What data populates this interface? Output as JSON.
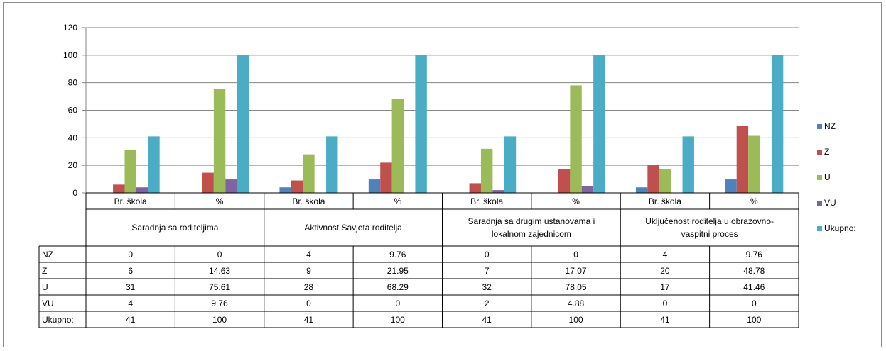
{
  "chart_data": {
    "type": "bar",
    "groups": [
      "Saradnja sa roditeljima",
      "Aktivnost Savjeta roditelja",
      "Saradnja sa drugim ustanovama i lokalnom zajednicom",
      "Uključenost roditelja u obrazovno-vaspitni proces"
    ],
    "group_label_lines": [
      [
        "Saradnja sa roditeljima"
      ],
      [
        "Aktivnost Savjeta roditelja"
      ],
      [
        "Saradnja sa drugim ustanovama i",
        "lokalnom zajednicom"
      ],
      [
        "Uključenost roditelja u obrazovno-",
        "vaspitni proces"
      ]
    ],
    "categories": [
      "Br. škola",
      "%",
      "Br. škola",
      "%",
      "Br. škola",
      "%",
      "Br. škola",
      "%"
    ],
    "series": [
      {
        "name": "NZ",
        "color": "#4f81bd",
        "values": [
          0,
          0,
          4,
          9.76,
          0,
          0,
          4,
          9.76
        ]
      },
      {
        "name": "Z",
        "color": "#c0504d",
        "values": [
          6,
          14.63,
          9,
          21.95,
          7,
          17.07,
          20,
          48.78
        ]
      },
      {
        "name": "U",
        "color": "#9bbb59",
        "values": [
          31,
          75.61,
          28,
          68.29,
          32,
          78.05,
          17,
          41.46
        ]
      },
      {
        "name": "VU",
        "color": "#8064a2",
        "values": [
          4,
          9.76,
          0,
          0,
          2,
          4.88,
          0,
          0
        ]
      },
      {
        "name": "Ukupno:",
        "color": "#4bacc6",
        "values": [
          41,
          100,
          41,
          100,
          41,
          100,
          41,
          100
        ]
      }
    ],
    "table_values": [
      [
        "0",
        "0",
        "4",
        "9.76",
        "0",
        "0",
        "4",
        "9.76"
      ],
      [
        "6",
        "14.63",
        "9",
        "21.95",
        "7",
        "17.07",
        "20",
        "48.78"
      ],
      [
        "31",
        "75.61",
        "28",
        "68.29",
        "32",
        "78.05",
        "17",
        "41.46"
      ],
      [
        "4",
        "9.76",
        "0",
        "0",
        "2",
        "4.88",
        "0",
        "0"
      ],
      [
        "41",
        "100",
        "41",
        "100",
        "41",
        "100",
        "41",
        "100"
      ]
    ],
    "ylim": [
      0,
      120
    ],
    "yticks": [
      0,
      20,
      40,
      60,
      80,
      100,
      120
    ],
    "grid": true,
    "legend_position": "right"
  }
}
